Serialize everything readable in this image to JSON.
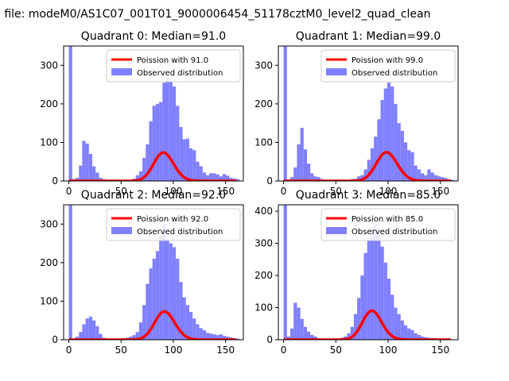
{
  "figure": {
    "suptitle": "n file: modeM0/AS1C07_001T01_9000006454_51178cztM0_level2_quad_clean"
  },
  "colors": {
    "fit": "#ff0000",
    "hist": "#8080ff",
    "axes": "#000000",
    "background": "#ffffff"
  },
  "chart_data": [
    {
      "type": "bar",
      "title": "Quadrant 0: Median=91.0",
      "xlim": [
        -5,
        167
      ],
      "ylim": [
        0,
        350
      ],
      "xticks": [
        0,
        50,
        100,
        150
      ],
      "yticks": [
        0,
        100,
        200,
        300
      ],
      "legend": [
        "Poission with 91.0",
        "Observed distribution"
      ],
      "legend_position": "upper right",
      "bin_width": 3.2,
      "x": [
        0,
        3.2,
        6.4,
        9.6,
        12.8,
        16,
        19.2,
        22.4,
        25.6,
        28.8,
        32,
        35.2,
        38.4,
        41.6,
        44.8,
        48,
        51.2,
        54.4,
        57.6,
        60.8,
        64,
        67.2,
        70.4,
        73.6,
        76.8,
        80,
        83.2,
        86.4,
        89.6,
        92.8,
        96,
        99.2,
        102.4,
        105.6,
        108.8,
        112,
        115.2,
        118.4,
        121.6,
        124.8,
        128,
        131.2,
        134.4,
        137.6,
        140.8,
        144,
        147.2,
        150.4,
        153.6,
        156.8,
        160
      ],
      "hist_values": [
        350,
        5,
        8,
        40,
        104,
        97,
        70,
        38,
        22,
        8,
        5,
        3,
        2,
        2,
        3,
        2,
        3,
        2,
        3,
        6,
        15,
        25,
        60,
        95,
        155,
        195,
        200,
        205,
        255,
        270,
        257,
        245,
        195,
        140,
        108,
        110,
        85,
        80,
        50,
        38,
        22,
        15,
        20,
        20,
        17,
        12,
        18,
        14,
        8,
        6,
        5
      ],
      "poisson_mean": 91.0,
      "poisson_scale": 55000.0
    },
    {
      "type": "bar",
      "title": "Quadrant 1: Median=99.0",
      "xlim": [
        -5,
        167
      ],
      "ylim": [
        0,
        350
      ],
      "xticks": [
        0,
        50,
        100,
        150
      ],
      "yticks": [
        0,
        100,
        200,
        300
      ],
      "legend": [
        "Poission with 99.0",
        "Observed distribution"
      ],
      "legend_position": "upper right",
      "bin_width": 3.2,
      "x": [
        0,
        3.2,
        6.4,
        9.6,
        12.8,
        16,
        19.2,
        22.4,
        25.6,
        28.8,
        32,
        35.2,
        38.4,
        41.6,
        44.8,
        48,
        51.2,
        54.4,
        57.6,
        60.8,
        64,
        67.2,
        70.4,
        73.6,
        76.8,
        80,
        83.2,
        86.4,
        89.6,
        92.8,
        96,
        99.2,
        102.4,
        105.6,
        108.8,
        112,
        115.2,
        118.4,
        121.6,
        124.8,
        128,
        131.2,
        134.4,
        137.6,
        140.8,
        144,
        147.2,
        150.4,
        153.6,
        156.8,
        160
      ],
      "hist_values": [
        350,
        4,
        10,
        35,
        95,
        138,
        82,
        45,
        20,
        12,
        10,
        5,
        3,
        2,
        3,
        4,
        3,
        3,
        2,
        3,
        5,
        6,
        12,
        15,
        30,
        55,
        85,
        115,
        160,
        210,
        240,
        255,
        245,
        200,
        150,
        130,
        100,
        80,
        75,
        40,
        30,
        20,
        15,
        30,
        22,
        15,
        12,
        10,
        8,
        5,
        3
      ],
      "poisson_mean": 99.0,
      "poisson_scale": 58000.0
    },
    {
      "type": "bar",
      "title": "Quadrant 2: Median=92.0",
      "xlim": [
        -5,
        167
      ],
      "ylim": [
        0,
        350
      ],
      "xticks": [
        0,
        50,
        100,
        150
      ],
      "yticks": [
        0,
        100,
        200,
        300
      ],
      "legend": [
        "Poission with 92.0",
        "Observed distribution"
      ],
      "legend_position": "upper right",
      "bin_width": 3.2,
      "x": [
        0,
        3.2,
        6.4,
        9.6,
        12.8,
        16,
        19.2,
        22.4,
        25.6,
        28.8,
        32,
        35.2,
        38.4,
        41.6,
        44.8,
        48,
        51.2,
        54.4,
        57.6,
        60.8,
        64,
        67.2,
        70.4,
        73.6,
        76.8,
        80,
        83.2,
        86.4,
        89.6,
        92.8,
        96,
        99.2,
        102.4,
        105.6,
        108.8,
        112,
        115.2,
        118.4,
        121.6,
        124.8,
        128,
        131.2,
        134.4,
        137.6,
        140.8,
        144,
        147.2,
        150.4,
        153.6,
        156.8,
        160
      ],
      "hist_values": [
        350,
        2,
        8,
        20,
        40,
        55,
        60,
        50,
        35,
        15,
        5,
        3,
        2,
        2,
        2,
        3,
        4,
        5,
        8,
        12,
        20,
        45,
        90,
        145,
        185,
        210,
        230,
        270,
        300,
        260,
        250,
        240,
        210,
        150,
        110,
        90,
        72,
        55,
        40,
        30,
        25,
        18,
        16,
        14,
        12,
        14,
        10,
        8,
        6,
        4,
        3
      ],
      "poisson_mean": 92.0,
      "poisson_scale": 55000.0
    },
    {
      "type": "bar",
      "title": "Quadrant 3: Median=85.0",
      "xlim": [
        -5,
        167
      ],
      "ylim": [
        0,
        420
      ],
      "xticks": [
        0,
        50,
        100,
        150
      ],
      "yticks": [
        0,
        100,
        200,
        300,
        400
      ],
      "legend": [
        "Poission with 85.0",
        "Observed distribution"
      ],
      "legend_position": "upper right",
      "bin_width": 3.2,
      "x": [
        0,
        3.2,
        6.4,
        9.6,
        12.8,
        16,
        19.2,
        22.4,
        25.6,
        28.8,
        32,
        35.2,
        38.4,
        41.6,
        44.8,
        48,
        51.2,
        54.4,
        57.6,
        60.8,
        64,
        67.2,
        70.4,
        73.6,
        76.8,
        80,
        83.2,
        86.4,
        89.6,
        92.8,
        96,
        99.2,
        102.4,
        105.6,
        108.8,
        112,
        115.2,
        118.4,
        121.6,
        124.8,
        128,
        131.2,
        134.4,
        137.6,
        140.8,
        144,
        147.2,
        150.4,
        153.6,
        156.8,
        160
      ],
      "hist_values": [
        420,
        10,
        35,
        115,
        100,
        65,
        40,
        25,
        15,
        10,
        5,
        3,
        2,
        2,
        2,
        3,
        4,
        6,
        10,
        20,
        40,
        80,
        130,
        200,
        270,
        310,
        350,
        360,
        330,
        290,
        240,
        190,
        140,
        100,
        80,
        60,
        45,
        35,
        30,
        20,
        15,
        10,
        8,
        6,
        5,
        4,
        3,
        2,
        2,
        2,
        1
      ],
      "poisson_mean": 85.0,
      "poisson_scale": 65000.0
    }
  ]
}
